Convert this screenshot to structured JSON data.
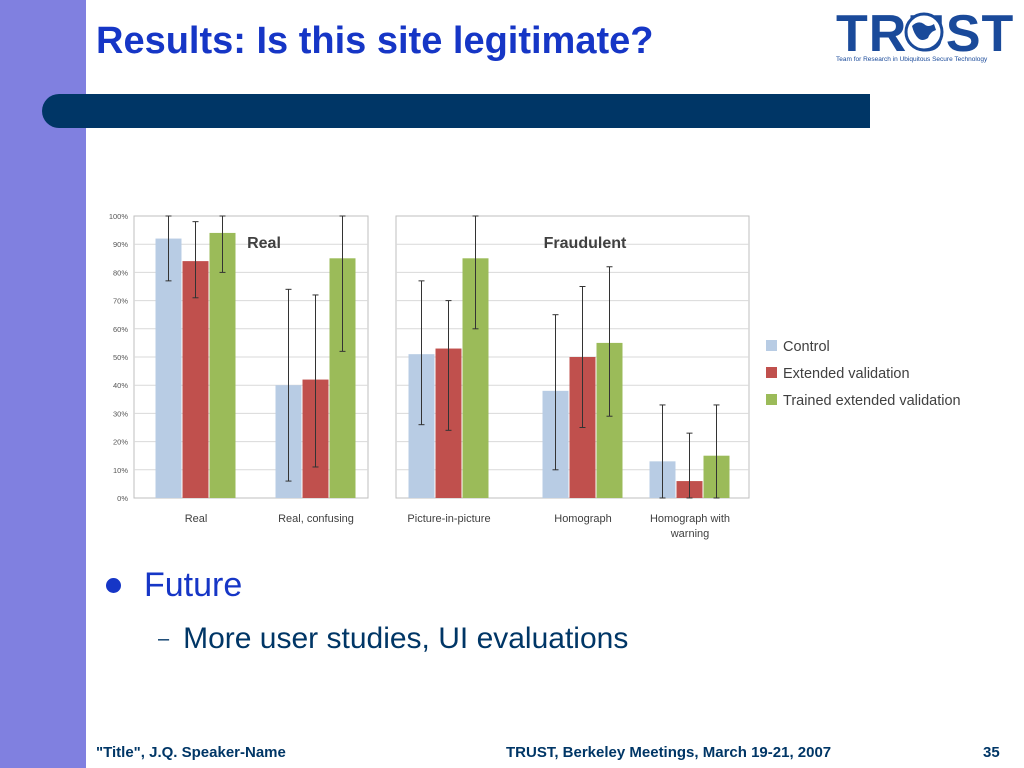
{
  "slide": {
    "title": "Results: Is this site legitimate?",
    "logo": {
      "word": "TRUST",
      "tagline": "Team for Research in Ubiquitous Secure Technology",
      "icon": "globe-icon"
    },
    "bullets": [
      {
        "text": "Future",
        "subitems": [
          "More user studies, UI evaluations"
        ]
      }
    ],
    "footer": {
      "left": "\"Title\", J.Q. Speaker-Name",
      "center": "TRUST, Berkeley Meetings, March 19-21, 2007",
      "page": "35"
    },
    "colors": {
      "stripe": "#8080e0",
      "title": "#1636c6",
      "bar": "#003666",
      "footer": "#003666"
    }
  },
  "chart_data": {
    "type": "bar",
    "panels": [
      {
        "title": "Real",
        "categories": [
          "Real",
          "Real, confusing"
        ]
      },
      {
        "title": "Fraudulent",
        "categories": [
          "Picture-in-picture",
          "Homograph",
          "Homograph with warning"
        ]
      }
    ],
    "categories": [
      "Real",
      "Real, confusing",
      "Picture-in-picture",
      "Homograph",
      "Homograph with warning"
    ],
    "series": [
      {
        "name": "Control",
        "color": "#b8cce4",
        "values": [
          92,
          40,
          51,
          38,
          13
        ],
        "error_low": [
          77,
          6,
          26,
          10,
          0
        ],
        "error_high": [
          100,
          74,
          77,
          65,
          33
        ]
      },
      {
        "name": "Extended validation",
        "color": "#c0504d",
        "values": [
          84,
          42,
          53,
          50,
          6
        ],
        "error_low": [
          71,
          11,
          24,
          25,
          0
        ],
        "error_high": [
          98,
          72,
          70,
          75,
          23
        ]
      },
      {
        "name": "Trained extended validation",
        "color": "#9bbb59",
        "values": [
          94,
          85,
          85,
          55,
          15
        ],
        "error_low": [
          80,
          52,
          60,
          29,
          0
        ],
        "error_high": [
          100,
          100,
          100,
          82,
          33
        ]
      }
    ],
    "yticks": [
      "0%",
      "10%",
      "20%",
      "30%",
      "40%",
      "50%",
      "60%",
      "70%",
      "80%",
      "90%",
      "100%"
    ],
    "ylim": [
      0,
      100
    ],
    "legend": "right",
    "grid": true
  }
}
